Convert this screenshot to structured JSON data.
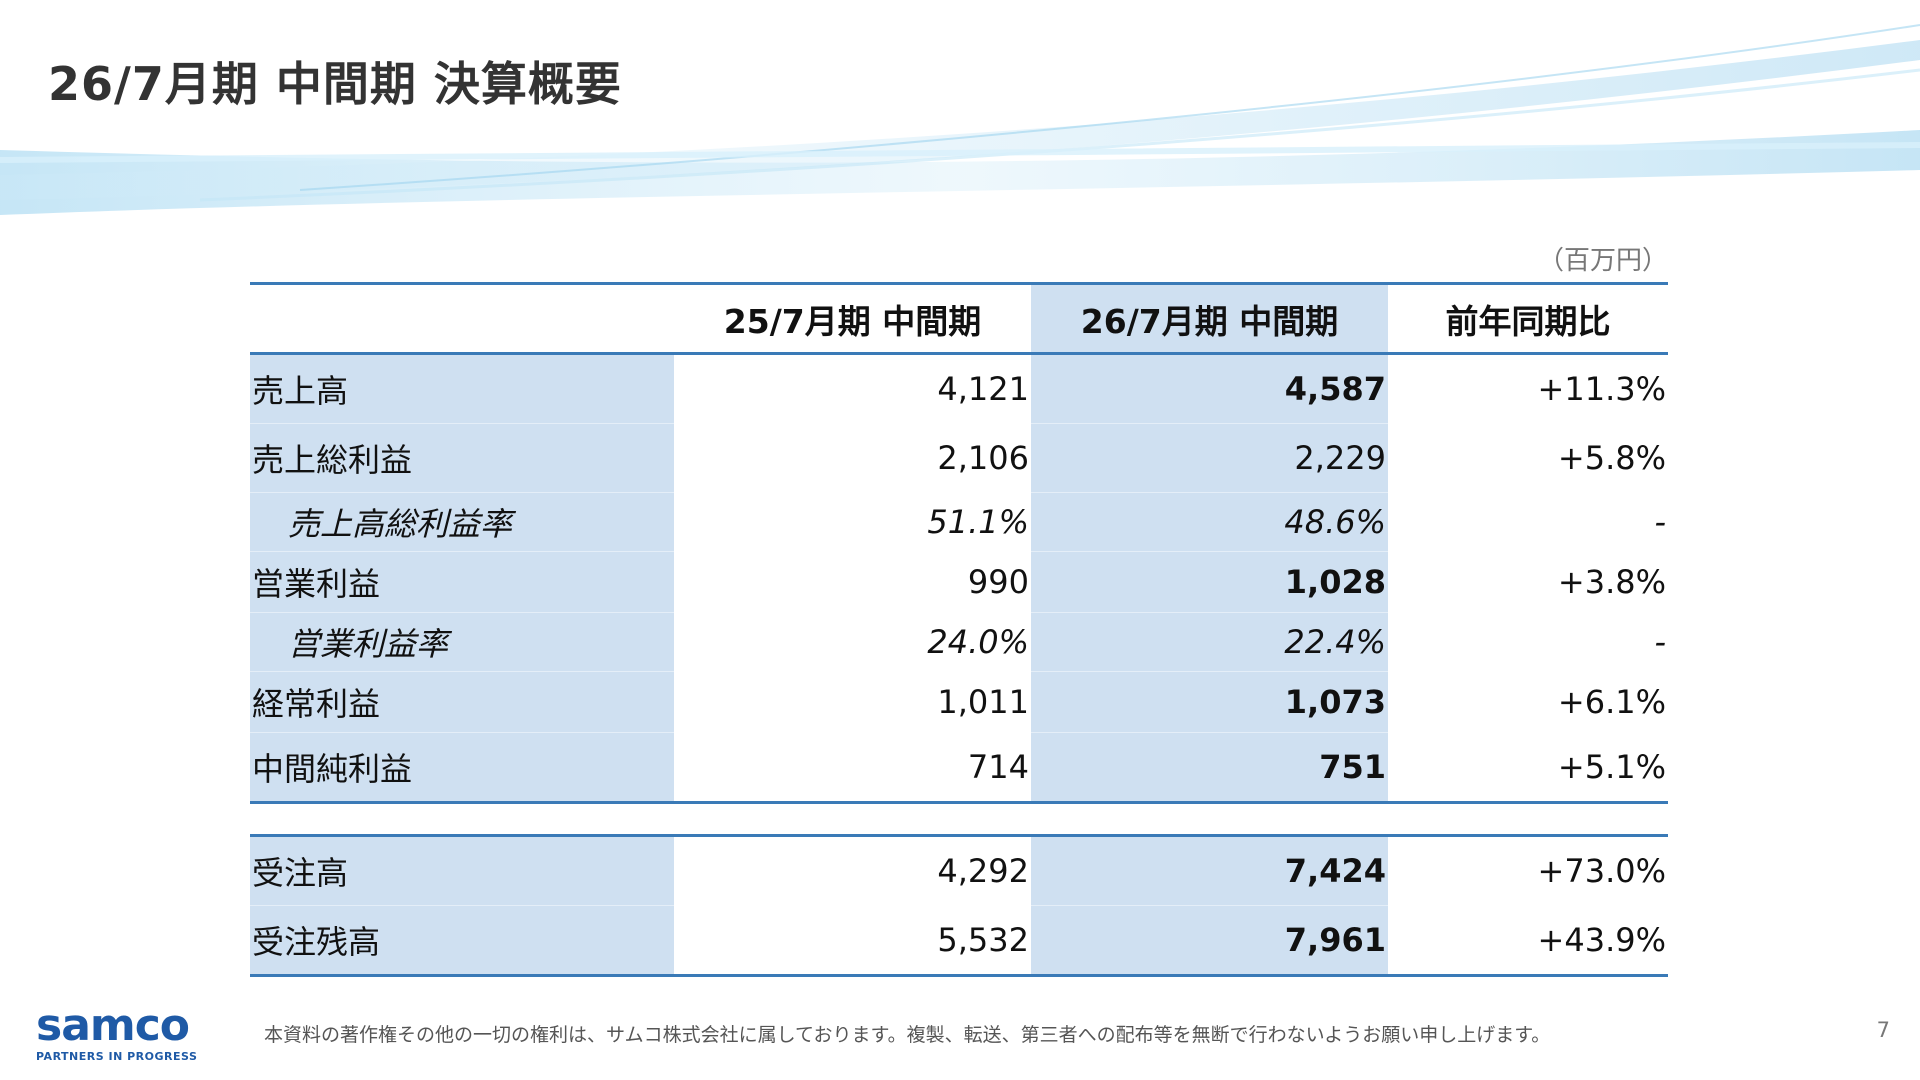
{
  "title": "26/7月期 中間期 決算概要",
  "unit": "（百万円）",
  "table": {
    "headers": [
      "",
      "25/7月期 中間期",
      "26/7月期 中間期",
      "前年同期比"
    ],
    "rows": [
      {
        "label": "売上高",
        "prev": "4,121",
        "cur": "4,587",
        "yoy": "+11.3%"
      },
      {
        "label": "売上総利益",
        "prev": "2,106",
        "cur": "2,229",
        "yoy": "+5.8%"
      },
      {
        "label": "売上高総利益率",
        "prev": "51.1%",
        "cur": "48.6%",
        "yoy": "-"
      },
      {
        "label": "営業利益",
        "prev": "990",
        "cur": "1,028",
        "yoy": "+3.8%"
      },
      {
        "label": "営業利益率",
        "prev": "24.0%",
        "cur": "22.4%",
        "yoy": "-"
      },
      {
        "label": "経常利益",
        "prev": "1,011",
        "cur": "1,073",
        "yoy": "+6.1%"
      },
      {
        "label": "中間純利益",
        "prev": "714",
        "cur": "751",
        "yoy": "+5.1%"
      }
    ],
    "orders": [
      {
        "label": "受注高",
        "prev": "4,292",
        "cur": "7,424",
        "yoy": "+73.0%"
      },
      {
        "label": "受注残高",
        "prev": "5,532",
        "cur": "7,961",
        "yoy": "+43.9%"
      }
    ]
  },
  "footer": {
    "copyright": "本資料の著作権その他の一切の権利は、サムコ株式会社に属しております。複製、転送、第三者への配布等を無断で行わないようお願い申し上げます。",
    "page_number": "7",
    "logo_text": "samco",
    "logo_tagline": "PARTNERS IN PROGRESS"
  },
  "colors": {
    "accent_line": "#3a7ab7",
    "highlight_fill": "#cfe0f1",
    "logo": "#1f5aa6"
  }
}
